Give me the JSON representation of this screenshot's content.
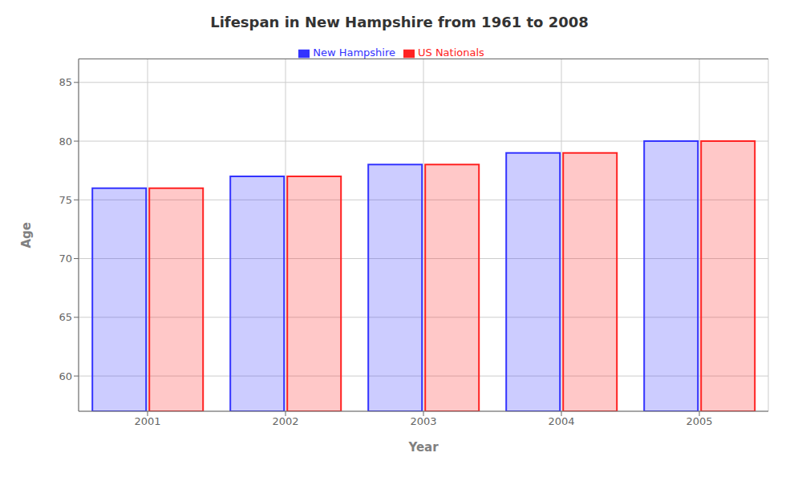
{
  "chart_data": {
    "type": "bar",
    "title": "Lifespan in New Hampshire from 1961 to 2008",
    "xlabel": "Year",
    "ylabel": "Age",
    "categories": [
      "2001",
      "2002",
      "2003",
      "2004",
      "2005"
    ],
    "series": [
      {
        "name": "New Hampshire",
        "color": "#3333ff",
        "values": [
          76,
          77,
          78,
          79,
          80
        ]
      },
      {
        "name": "US Nationals",
        "color": "#ff2222",
        "values": [
          76,
          77,
          78,
          79,
          80
        ]
      }
    ],
    "ylim": [
      57,
      87
    ],
    "yticks": [
      60,
      65,
      70,
      75,
      80,
      85
    ],
    "grid": true,
    "legend": "top"
  }
}
